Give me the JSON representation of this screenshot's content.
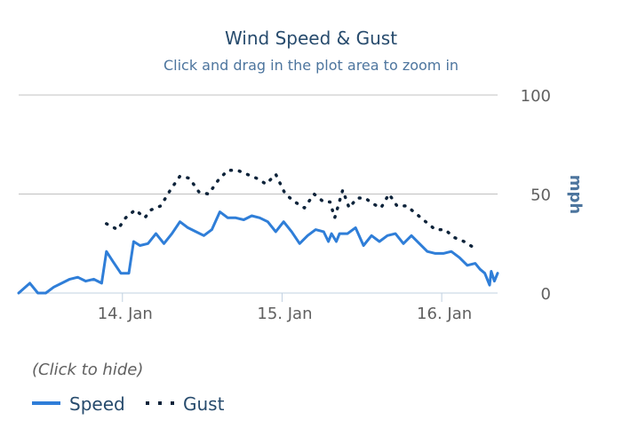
{
  "chart_data": {
    "type": "line",
    "title": "Wind Speed & Gust",
    "subtitle": "Click and drag in the plot area to zoom in",
    "ylabel": "mph",
    "ylim": [
      0,
      100
    ],
    "yticks": [
      "0",
      "50",
      "100"
    ],
    "xlim": [
      13.35,
      16.35
    ],
    "xticks": [
      {
        "value": 14,
        "label": "14. Jan"
      },
      {
        "value": 15,
        "label": "15. Jan"
      },
      {
        "value": 16,
        "label": "16. Jan"
      }
    ],
    "grid": true,
    "legend_hint": "(Click to hide)",
    "legend_position": "bottom-left",
    "series": [
      {
        "name": "Speed",
        "color": "#2f7ed8",
        "style": "solid",
        "points": [
          [
            13.35,
            0
          ],
          [
            13.42,
            5
          ],
          [
            13.47,
            0
          ],
          [
            13.52,
            0
          ],
          [
            13.57,
            3
          ],
          [
            13.62,
            5
          ],
          [
            13.67,
            7
          ],
          [
            13.72,
            8
          ],
          [
            13.77,
            6
          ],
          [
            13.82,
            7
          ],
          [
            13.87,
            5
          ],
          [
            13.9,
            21
          ],
          [
            13.94,
            16
          ],
          [
            13.99,
            10
          ],
          [
            14.04,
            10
          ],
          [
            14.07,
            26
          ],
          [
            14.11,
            24
          ],
          [
            14.16,
            25
          ],
          [
            14.21,
            30
          ],
          [
            14.26,
            25
          ],
          [
            14.31,
            30
          ],
          [
            14.36,
            36
          ],
          [
            14.41,
            33
          ],
          [
            14.46,
            31
          ],
          [
            14.51,
            29
          ],
          [
            14.56,
            32
          ],
          [
            14.61,
            41
          ],
          [
            14.66,
            38
          ],
          [
            14.71,
            38
          ],
          [
            14.76,
            37
          ],
          [
            14.81,
            39
          ],
          [
            14.86,
            38
          ],
          [
            14.91,
            36
          ],
          [
            14.96,
            31
          ],
          [
            15.01,
            36
          ],
          [
            15.06,
            31
          ],
          [
            15.11,
            25
          ],
          [
            15.16,
            29
          ],
          [
            15.21,
            32
          ],
          [
            15.26,
            31
          ],
          [
            15.29,
            26
          ],
          [
            15.31,
            30
          ],
          [
            15.34,
            26
          ],
          [
            15.36,
            30
          ],
          [
            15.41,
            30
          ],
          [
            15.46,
            33
          ],
          [
            15.51,
            24
          ],
          [
            15.56,
            29
          ],
          [
            15.61,
            26
          ],
          [
            15.66,
            29
          ],
          [
            15.71,
            30
          ],
          [
            15.76,
            25
          ],
          [
            15.81,
            29
          ],
          [
            15.86,
            25
          ],
          [
            15.91,
            21
          ],
          [
            15.96,
            20
          ],
          [
            16.01,
            20
          ],
          [
            16.06,
            21
          ],
          [
            16.11,
            18
          ],
          [
            16.16,
            14
          ],
          [
            16.21,
            15
          ],
          [
            16.24,
            12
          ],
          [
            16.27,
            10
          ],
          [
            16.3,
            4
          ],
          [
            16.31,
            11
          ],
          [
            16.33,
            6
          ],
          [
            16.35,
            10
          ]
        ]
      },
      {
        "name": "Gust",
        "color": "#0d233a",
        "style": "dotted",
        "points": [
          [
            13.9,
            35
          ],
          [
            13.97,
            32
          ],
          [
            14.02,
            38
          ],
          [
            14.08,
            42
          ],
          [
            14.14,
            38
          ],
          [
            14.18,
            42
          ],
          [
            14.24,
            44
          ],
          [
            14.3,
            52
          ],
          [
            14.36,
            59
          ],
          [
            14.42,
            58
          ],
          [
            14.48,
            51
          ],
          [
            14.54,
            50
          ],
          [
            14.6,
            57
          ],
          [
            14.66,
            62
          ],
          [
            14.72,
            62
          ],
          [
            14.78,
            60
          ],
          [
            14.84,
            58
          ],
          [
            14.9,
            55
          ],
          [
            14.96,
            60
          ],
          [
            15.02,
            50
          ],
          [
            15.08,
            46
          ],
          [
            15.14,
            43
          ],
          [
            15.2,
            50
          ],
          [
            15.26,
            46
          ],
          [
            15.3,
            46
          ],
          [
            15.33,
            38
          ],
          [
            15.38,
            52
          ],
          [
            15.42,
            43
          ],
          [
            15.47,
            48
          ],
          [
            15.52,
            48
          ],
          [
            15.57,
            45
          ],
          [
            15.62,
            43
          ],
          [
            15.67,
            50
          ],
          [
            15.72,
            44
          ],
          [
            15.78,
            44
          ],
          [
            15.84,
            40
          ],
          [
            15.9,
            36
          ],
          [
            15.96,
            32
          ],
          [
            16.02,
            32
          ],
          [
            16.08,
            28
          ],
          [
            16.14,
            26
          ],
          [
            16.2,
            23
          ]
        ]
      }
    ]
  }
}
